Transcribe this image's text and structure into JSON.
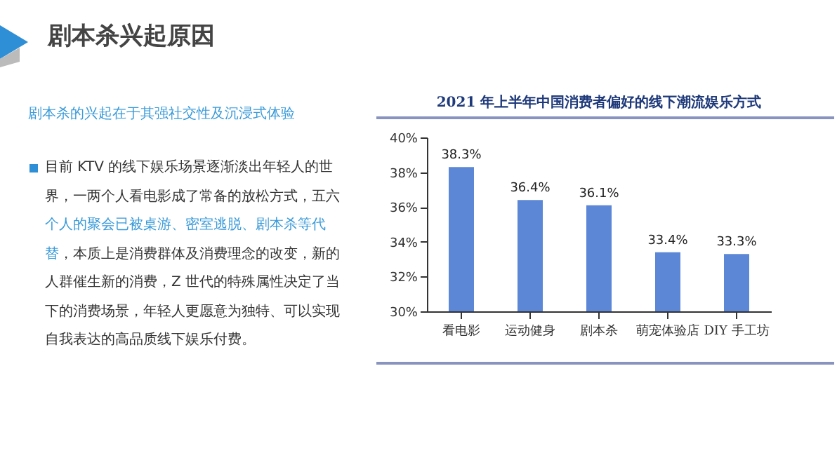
{
  "chart_data": {
    "type": "bar",
    "title": "2021 年上半年中国消费者偏好的线下潮流娱乐方式",
    "categories": [
      "看电影",
      "运动健身",
      "剧本杀",
      "萌宠体验店",
      "DIY 手工坊"
    ],
    "values": [
      38.3,
      36.4,
      36.1,
      33.4,
      33.3
    ],
    "value_labels": [
      "38.3%",
      "36.4%",
      "36.1%",
      "33.4%",
      "33.3%"
    ],
    "color": "#5b87d6",
    "ylim": [
      30,
      40
    ],
    "yticks": [
      {
        "value": 30,
        "label": "30%"
      },
      {
        "value": 32,
        "label": "32%"
      },
      {
        "value": 34,
        "label": "34%"
      },
      {
        "value": 36,
        "label": "36%"
      },
      {
        "value": 38,
        "label": "38%"
      },
      {
        "value": 40,
        "label": "40%"
      }
    ],
    "grid": false,
    "annotations": [
      "剧本杀兴起原因",
      "剧本杀的兴起在于其强社交性及沉浸式体验",
      "目前 KTV 的线下娱乐场景逐渐淡出年轻人的世界，一两个人看电影成了常备的放松方式，五六",
      "个人的聚会已被桌游、密室逃脱、剧本杀等代替",
      "，本质上是消费群体及消费理念的改变，新的人群催生新的消费，Z 世代的特殊属性决定了当下的消费场景，年轻人更愿意为独特、可以实现自我表达的高品质线下娱乐付费。"
    ]
  }
}
